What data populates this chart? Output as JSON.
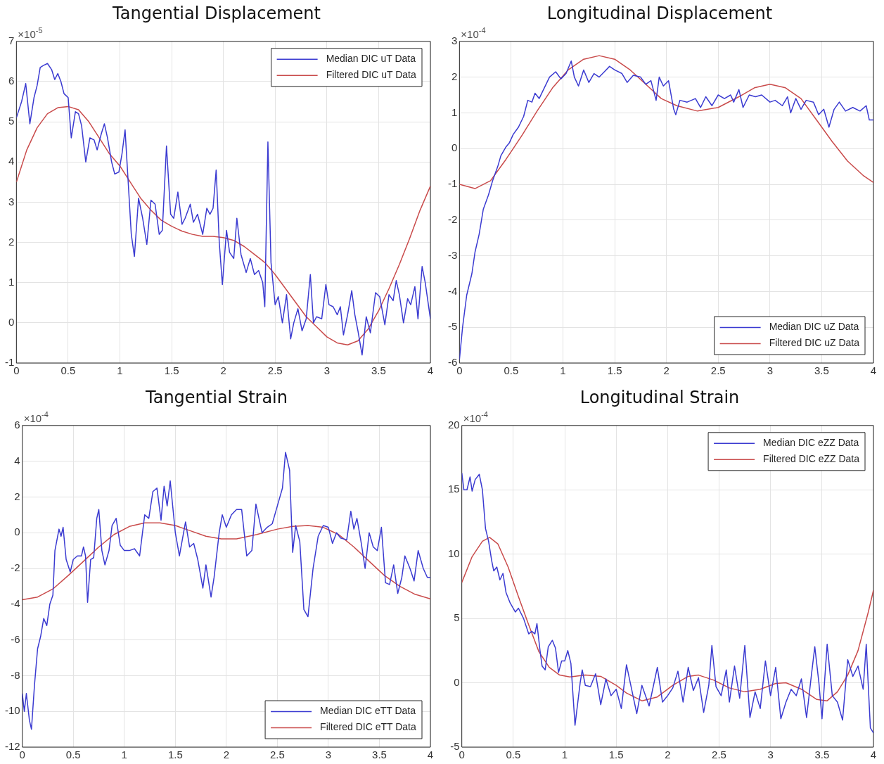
{
  "chart_data": [
    {
      "type": "line",
      "title": "Tangential Displacement",
      "annotations": [
        "×10$^{-5}$"
      ],
      "xlim": [
        0,
        4
      ],
      "xticks": [
        0,
        0.5,
        1,
        1.5,
        2,
        2.5,
        3,
        3.5,
        4
      ],
      "ylim": [
        -1,
        7
      ],
      "yticks": [
        -1,
        0,
        1,
        2,
        3,
        4,
        5,
        6,
        7
      ],
      "grid": true,
      "legend": "top right",
      "marker": "none",
      "series": [
        {
          "name": "Median DIC uT Data",
          "color": "#3b3bd1",
          "x": [
            0,
            0.05,
            0.09,
            0.13,
            0.17,
            0.2,
            0.23,
            0.26,
            0.3,
            0.34,
            0.37,
            0.4,
            0.43,
            0.46,
            0.5,
            0.53,
            0.57,
            0.6,
            0.63,
            0.67,
            0.71,
            0.75,
            0.78,
            0.82,
            0.85,
            0.88,
            0.92,
            0.95,
            0.99,
            1.02,
            1.05,
            1.08,
            1.11,
            1.14,
            1.18,
            1.22,
            1.26,
            1.3,
            1.34,
            1.38,
            1.41,
            1.45,
            1.49,
            1.52,
            1.56,
            1.6,
            1.63,
            1.68,
            1.71,
            1.75,
            1.8,
            1.84,
            1.87,
            1.9,
            1.93,
            1.96,
            1.99,
            2.03,
            2.06,
            2.1,
            2.13,
            2.17,
            2.22,
            2.26,
            2.3,
            2.34,
            2.38,
            2.4,
            2.43,
            2.46,
            2.5,
            2.53,
            2.57,
            2.61,
            2.65,
            2.68,
            2.72,
            2.76,
            2.8,
            2.84,
            2.87,
            2.9,
            2.95,
            2.99,
            3.02,
            3.06,
            3.1,
            3.13,
            3.16,
            3.2,
            3.24,
            3.27,
            3.3,
            3.34,
            3.38,
            3.42,
            3.47,
            3.51,
            3.56,
            3.6,
            3.64,
            3.67,
            3.7,
            3.74,
            3.78,
            3.81,
            3.85,
            3.88,
            3.92,
            3.95,
            4
          ],
          "values": [
            5.1,
            5.5,
            5.95,
            4.95,
            5.6,
            5.9,
            6.35,
            6.4,
            6.45,
            6.3,
            6.05,
            6.2,
            6,
            5.7,
            5.6,
            4.6,
            5.25,
            5.2,
            4.9,
            4,
            4.6,
            4.55,
            4.3,
            4.7,
            4.95,
            4.6,
            4,
            3.7,
            3.75,
            4.2,
            4.8,
            3.5,
            2.2,
            1.65,
            3.1,
            2.6,
            1.95,
            3.05,
            2.95,
            2.2,
            2.3,
            4.4,
            2.7,
            2.6,
            3.25,
            2.45,
            2.6,
            2.95,
            2.5,
            2.7,
            2.2,
            2.85,
            2.7,
            2.85,
            3.8,
            2,
            0.95,
            2.3,
            1.75,
            1.6,
            2.6,
            1.7,
            1.25,
            1.6,
            1.2,
            1.3,
            1,
            0.4,
            4.5,
            1.5,
            0.45,
            0.65,
            0,
            0.7,
            -0.4,
            0,
            0.35,
            -0.2,
            0.1,
            1.2,
            0,
            0.15,
            0.1,
            0.95,
            0.45,
            0.4,
            0.2,
            0.4,
            -0.3,
            0.2,
            0.8,
            0.2,
            -0.2,
            -0.8,
            0.15,
            -0.25,
            0.75,
            0.65,
            -0.05,
            0.7,
            0.55,
            1.05,
            0.7,
            0,
            0.6,
            0.45,
            0.9,
            0.1,
            1.4,
            1,
            0.1
          ]
        },
        {
          "name": "Filtered DIC uT Data",
          "color": "#c94b4b",
          "x": [
            0,
            0.1,
            0.2,
            0.3,
            0.4,
            0.5,
            0.6,
            0.7,
            0.8,
            0.9,
            1,
            1.1,
            1.2,
            1.3,
            1.4,
            1.5,
            1.6,
            1.7,
            1.8,
            1.9,
            2,
            2.1,
            2.2,
            2.3,
            2.4,
            2.5,
            2.6,
            2.7,
            2.8,
            2.9,
            3,
            3.1,
            3.2,
            3.3,
            3.4,
            3.5,
            3.6,
            3.7,
            3.8,
            3.9,
            4
          ],
          "values": [
            3.5,
            4.3,
            4.85,
            5.2,
            5.35,
            5.38,
            5.3,
            5,
            4.6,
            4.2,
            3.9,
            3.5,
            3.1,
            2.8,
            2.55,
            2.4,
            2.28,
            2.2,
            2.15,
            2.15,
            2.12,
            2.05,
            1.9,
            1.7,
            1.5,
            1.2,
            0.85,
            0.5,
            0.15,
            -0.1,
            -0.35,
            -0.5,
            -0.55,
            -0.45,
            -0.15,
            0.3,
            0.85,
            1.45,
            2.1,
            2.8,
            3.4
          ]
        }
      ]
    },
    {
      "type": "line",
      "title": "Longitudinal Displacement",
      "annotations": [
        "×10$^{-4}$"
      ],
      "xlim": [
        0,
        4
      ],
      "xticks": [
        0,
        0.5,
        1,
        1.5,
        2,
        2.5,
        3,
        3.5,
        4
      ],
      "ylim": [
        -6,
        3
      ],
      "yticks": [
        -6,
        -5,
        -4,
        -3,
        -2,
        -1,
        0,
        1,
        2,
        3
      ],
      "grid": true,
      "legend": "bottom right",
      "marker": "none",
      "series": [
        {
          "name": "Median DIC uZ Data",
          "color": "#3b3bd1",
          "x": [
            0,
            0.03,
            0.07,
            0.12,
            0.15,
            0.19,
            0.23,
            0.28,
            0.32,
            0.37,
            0.4,
            0.45,
            0.48,
            0.52,
            0.57,
            0.62,
            0.66,
            0.7,
            0.73,
            0.77,
            0.82,
            0.87,
            0.93,
            0.98,
            1.03,
            1.08,
            1.11,
            1.15,
            1.2,
            1.25,
            1.3,
            1.35,
            1.4,
            1.45,
            1.5,
            1.57,
            1.62,
            1.68,
            1.75,
            1.8,
            1.85,
            1.9,
            1.93,
            1.97,
            2.02,
            2.07,
            2.09,
            2.13,
            2.2,
            2.28,
            2.33,
            2.38,
            2.44,
            2.5,
            2.56,
            2.62,
            2.65,
            2.7,
            2.74,
            2.8,
            2.86,
            2.92,
            3,
            3.05,
            3.12,
            3.17,
            3.2,
            3.25,
            3.3,
            3.35,
            3.42,
            3.47,
            3.52,
            3.57,
            3.62,
            3.67,
            3.73,
            3.8,
            3.87,
            3.93,
            3.96,
            4
          ],
          "values": [
            -5.9,
            -5,
            -4.1,
            -3.5,
            -2.9,
            -2.4,
            -1.7,
            -1.3,
            -0.9,
            -0.5,
            -0.2,
            0.05,
            0.15,
            0.4,
            0.6,
            0.9,
            1.35,
            1.3,
            1.55,
            1.4,
            1.7,
            2,
            2.15,
            1.95,
            2.1,
            2.45,
            2,
            1.75,
            2.2,
            1.85,
            2.1,
            2,
            2.15,
            2.3,
            2.2,
            2.1,
            1.85,
            2.05,
            2,
            1.8,
            1.9,
            1.35,
            2,
            1.75,
            1.9,
            1.1,
            0.95,
            1.35,
            1.3,
            1.4,
            1.15,
            1.45,
            1.2,
            1.5,
            1.4,
            1.5,
            1.3,
            1.65,
            1.15,
            1.5,
            1.45,
            1.5,
            1.3,
            1.35,
            1.2,
            1.45,
            1,
            1.4,
            1.1,
            1.35,
            1.3,
            0.95,
            1.1,
            0.6,
            1.1,
            1.3,
            1.05,
            1.15,
            1.05,
            1.2,
            0.8,
            0.8
          ]
        },
        {
          "name": "Filtered DIC uZ Data",
          "color": "#c94b4b",
          "x": [
            0,
            0.15,
            0.3,
            0.45,
            0.6,
            0.75,
            0.9,
            1.05,
            1.2,
            1.35,
            1.5,
            1.65,
            1.8,
            1.95,
            2.1,
            2.3,
            2.5,
            2.7,
            2.85,
            3,
            3.15,
            3.3,
            3.45,
            3.6,
            3.75,
            3.9,
            4
          ],
          "values": [
            -1,
            -1.12,
            -0.9,
            -0.3,
            0.35,
            1.05,
            1.7,
            2.2,
            2.5,
            2.6,
            2.5,
            2.2,
            1.8,
            1.4,
            1.2,
            1.05,
            1.15,
            1.45,
            1.7,
            1.8,
            1.7,
            1.4,
            0.8,
            0.2,
            -0.35,
            -0.75,
            -0.95
          ]
        }
      ]
    },
    {
      "type": "line",
      "title": "Tangential Strain",
      "annotations": [
        "×10$^{-4}$"
      ],
      "xlim": [
        0,
        4
      ],
      "xticks": [
        0,
        0.5,
        1,
        1.5,
        2,
        2.5,
        3,
        3.5,
        4
      ],
      "ylim": [
        -12,
        6
      ],
      "yticks": [
        -12,
        -10,
        -8,
        -6,
        -4,
        -2,
        0,
        2,
        4,
        6
      ],
      "grid": true,
      "legend": "bottom right",
      "marker": "none",
      "series": [
        {
          "name": "Median DIC eTT Data",
          "color": "#3b3bd1",
          "x": [
            0,
            0.02,
            0.04,
            0.07,
            0.09,
            0.12,
            0.15,
            0.18,
            0.21,
            0.24,
            0.27,
            0.3,
            0.32,
            0.36,
            0.38,
            0.4,
            0.43,
            0.47,
            0.5,
            0.54,
            0.58,
            0.6,
            0.62,
            0.64,
            0.67,
            0.7,
            0.73,
            0.75,
            0.78,
            0.81,
            0.85,
            0.88,
            0.92,
            0.96,
            1,
            1.05,
            1.1,
            1.15,
            1.2,
            1.24,
            1.28,
            1.32,
            1.36,
            1.39,
            1.42,
            1.45,
            1.5,
            1.54,
            1.6,
            1.64,
            1.68,
            1.72,
            1.77,
            1.8,
            1.85,
            1.88,
            1.93,
            1.96,
            2,
            2.05,
            2.1,
            2.15,
            2.2,
            2.25,
            2.29,
            2.32,
            2.35,
            2.4,
            2.45,
            2.5,
            2.55,
            2.58,
            2.62,
            2.65,
            2.68,
            2.72,
            2.76,
            2.8,
            2.85,
            2.9,
            2.95,
            3,
            3.04,
            3.08,
            3.12,
            3.18,
            3.22,
            3.25,
            3.28,
            3.32,
            3.36,
            3.4,
            3.44,
            3.48,
            3.52,
            3.56,
            3.6,
            3.64,
            3.68,
            3.72,
            3.75,
            3.8,
            3.84,
            3.88,
            3.93,
            3.97,
            4
          ],
          "values": [
            -9,
            -10,
            -9,
            -10.5,
            -11,
            -8.5,
            -6.5,
            -5.8,
            -4.8,
            -5.2,
            -4,
            -3.5,
            -1,
            0.2,
            -0.2,
            0.3,
            -1.5,
            -2.2,
            -1.5,
            -1.3,
            -1.3,
            -0.8,
            -1.3,
            -3.9,
            -1.5,
            -1.4,
            0.8,
            1.3,
            -1,
            -1.8,
            -1,
            0.4,
            0.8,
            -0.7,
            -1,
            -1,
            -0.9,
            -1.3,
            1,
            0.8,
            2.3,
            2.5,
            0.7,
            2.6,
            1.5,
            2.9,
            0,
            -1.3,
            0.6,
            -0.8,
            -0.6,
            -1.5,
            -3.1,
            -1.8,
            -3.6,
            -2.5,
            0,
            1,
            0.3,
            1,
            1.3,
            1.3,
            -1.3,
            -1,
            1.6,
            0.8,
            0,
            0.3,
            0.5,
            1.5,
            2.5,
            4.5,
            3.5,
            -1.1,
            0.4,
            -0.5,
            -4.3,
            -4.7,
            -2,
            -0.2,
            0.4,
            0.3,
            -0.6,
            0,
            -0.3,
            -0.4,
            1.2,
            0.2,
            0.8,
            -0.5,
            -2,
            0,
            -0.8,
            -1,
            0.3,
            -2.8,
            -2.9,
            -1.8,
            -3.4,
            -2.5,
            -1.3,
            -2,
            -2.7,
            -1,
            -2,
            -2.5,
            -2.5
          ]
        },
        {
          "name": "Filtered DIC eTT Data",
          "color": "#c94b4b",
          "x": [
            0,
            0.15,
            0.3,
            0.45,
            0.6,
            0.75,
            0.9,
            1.05,
            1.2,
            1.35,
            1.5,
            1.65,
            1.8,
            1.95,
            2.1,
            2.3,
            2.5,
            2.65,
            2.8,
            2.95,
            3.1,
            3.25,
            3.4,
            3.55,
            3.7,
            3.85,
            4
          ],
          "values": [
            -3.75,
            -3.6,
            -3.15,
            -2.4,
            -1.6,
            -0.8,
            -0.1,
            0.35,
            0.55,
            0.55,
            0.4,
            0.1,
            -0.2,
            -0.35,
            -0.35,
            -0.1,
            0.2,
            0.35,
            0.4,
            0.3,
            -0.1,
            -0.8,
            -1.6,
            -2.4,
            -3,
            -3.45,
            -3.7
          ]
        }
      ]
    },
    {
      "type": "line",
      "title": "Longitudinal Strain",
      "annotations": [
        "×10$^{-4}$"
      ],
      "xlim": [
        0,
        4
      ],
      "xticks": [
        0,
        0.5,
        1,
        1.5,
        2,
        2.5,
        3,
        3.5,
        4
      ],
      "ylim": [
        -5,
        20
      ],
      "yticks": [
        -5,
        0,
        5,
        10,
        15,
        20
      ],
      "grid": true,
      "legend": "top right",
      "marker": "none",
      "series": [
        {
          "name": "Median DIC eZZ Data",
          "color": "#3b3bd1",
          "x": [
            0,
            0.02,
            0.05,
            0.08,
            0.1,
            0.13,
            0.17,
            0.2,
            0.23,
            0.26,
            0.29,
            0.31,
            0.34,
            0.37,
            0.4,
            0.43,
            0.47,
            0.52,
            0.55,
            0.6,
            0.65,
            0.68,
            0.71,
            0.73,
            0.76,
            0.78,
            0.81,
            0.84,
            0.88,
            0.91,
            0.94,
            0.97,
            1,
            1.03,
            1.06,
            1.1,
            1.15,
            1.17,
            1.2,
            1.25,
            1.3,
            1.35,
            1.4,
            1.45,
            1.5,
            1.55,
            1.6,
            1.65,
            1.7,
            1.75,
            1.82,
            1.9,
            1.95,
            2,
            2.05,
            2.1,
            2.15,
            2.2,
            2.25,
            2.3,
            2.35,
            2.4,
            2.43,
            2.47,
            2.52,
            2.57,
            2.6,
            2.65,
            2.7,
            2.75,
            2.8,
            2.85,
            2.9,
            2.95,
            3,
            3.05,
            3.1,
            3.15,
            3.2,
            3.25,
            3.3,
            3.35,
            3.4,
            3.43,
            3.47,
            3.5,
            3.55,
            3.6,
            3.65,
            3.7,
            3.75,
            3.8,
            3.85,
            3.9,
            3.93,
            3.97,
            4
          ],
          "values": [
            16.3,
            15,
            15,
            16,
            14.9,
            15.8,
            16.2,
            15,
            12,
            11,
            9.5,
            8.7,
            9,
            8,
            8.5,
            7,
            6.2,
            5.5,
            5.8,
            5,
            3.8,
            4,
            3.8,
            4.6,
            2.5,
            1.3,
            1,
            2.8,
            3.3,
            2.7,
            0.8,
            1.7,
            1.7,
            2.5,
            1.5,
            -3.3,
            0,
            1,
            -0.2,
            -0.3,
            0.7,
            -1.7,
            0.3,
            -1,
            -0.5,
            -2,
            1.4,
            -0.5,
            -2.4,
            -0.2,
            -1.8,
            1.2,
            -1.5,
            -1,
            -0.4,
            0.9,
            -1.5,
            1.2,
            -0.6,
            0.4,
            -2.3,
            -0.2,
            2.9,
            -0.3,
            -1,
            1,
            -1.5,
            1.3,
            -1.2,
            2.9,
            -2.7,
            -0.7,
            -2,
            1.7,
            -1,
            1.2,
            -2.8,
            -1.5,
            -0.5,
            -1,
            0.3,
            -2.7,
            0.8,
            2.8,
            0,
            -2.8,
            3,
            -1,
            -1.5,
            -2.9,
            1.8,
            0.5,
            1.3,
            -0.5,
            3,
            -3.5,
            -3.9
          ]
        },
        {
          "name": "Filtered DIC eZZ Data",
          "color": "#c94b4b",
          "x": [
            0,
            0.1,
            0.2,
            0.27,
            0.35,
            0.45,
            0.55,
            0.65,
            0.75,
            0.85,
            0.95,
            1.05,
            1.2,
            1.35,
            1.5,
            1.6,
            1.75,
            1.9,
            2.05,
            2.2,
            2.3,
            2.45,
            2.6,
            2.75,
            2.9,
            3.05,
            3.15,
            3.3,
            3.45,
            3.55,
            3.65,
            3.75,
            3.85,
            3.95,
            4
          ],
          "values": [
            7.8,
            9.8,
            11,
            11.3,
            10.8,
            9,
            6.7,
            4.5,
            2.4,
            1.2,
            0.6,
            0.45,
            0.6,
            0.5,
            -0.2,
            -0.8,
            -1.4,
            -1.1,
            -0.2,
            0.5,
            0.6,
            0.2,
            -0.4,
            -0.7,
            -0.5,
            -0.05,
            0,
            -0.5,
            -1.3,
            -1.4,
            -0.7,
            0.6,
            2.5,
            5.5,
            7.2
          ]
        }
      ]
    }
  ]
}
